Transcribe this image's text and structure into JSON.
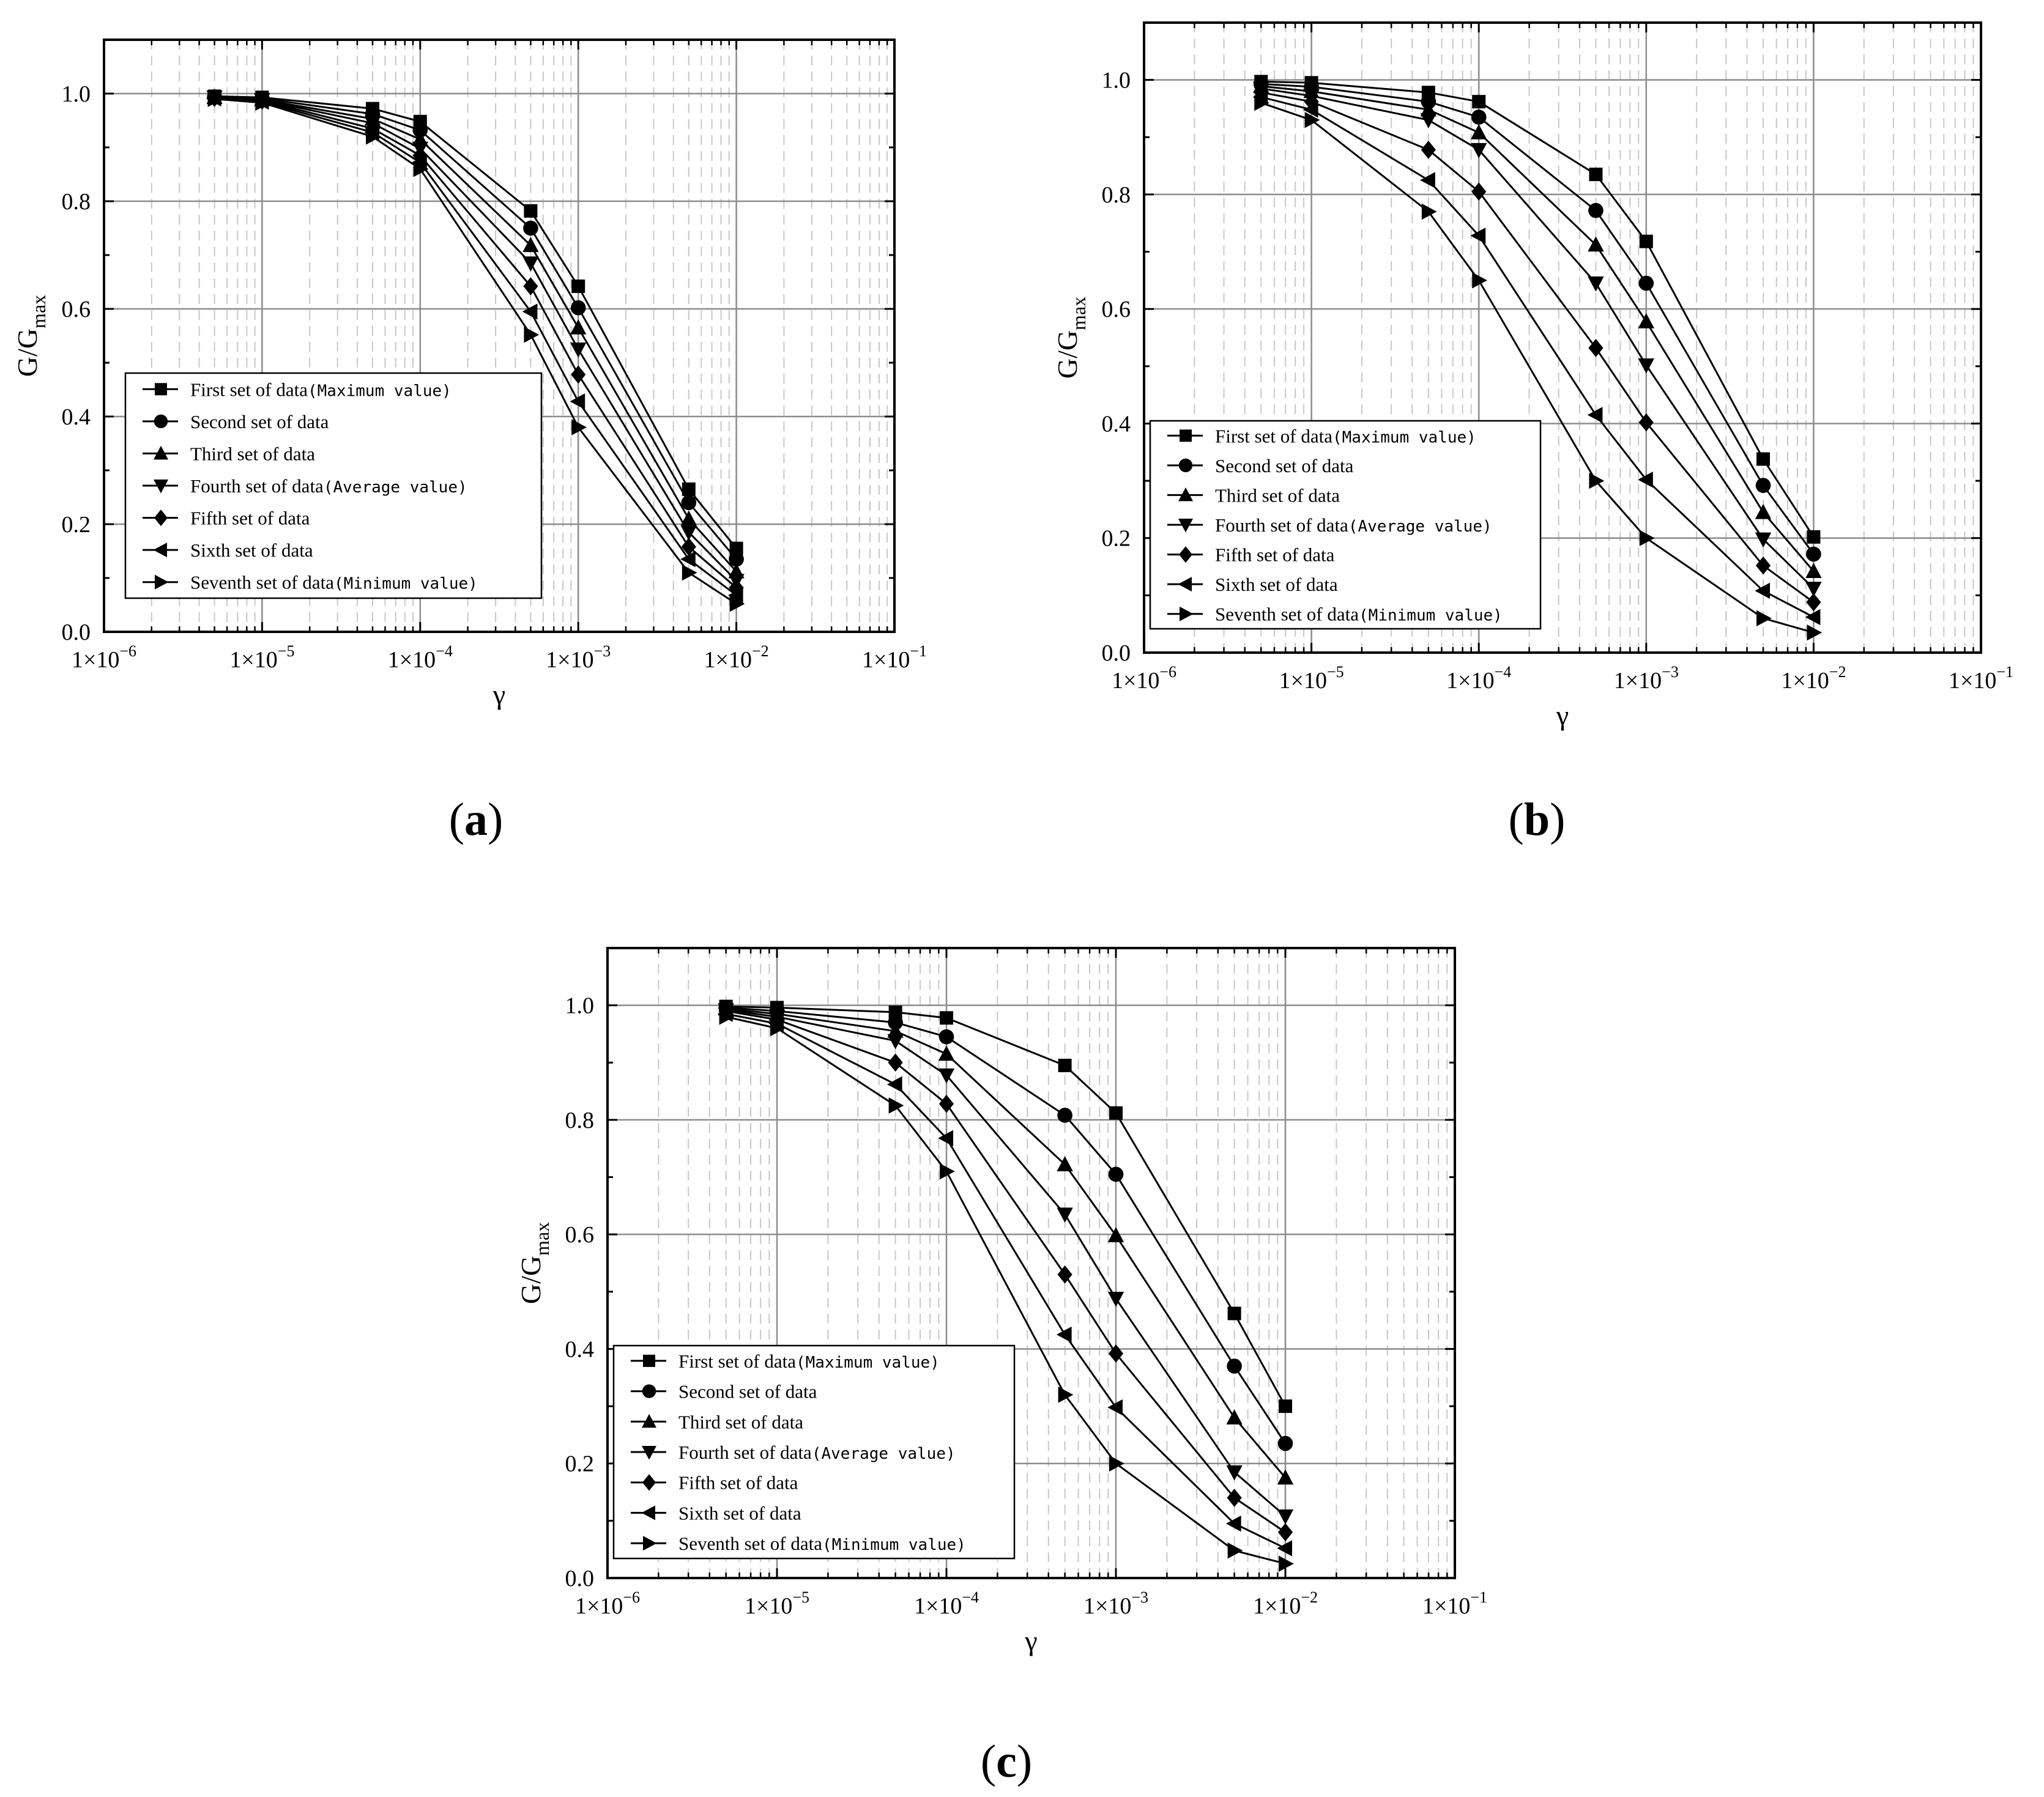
{
  "chart_data": [
    {
      "panel_label": "(a)",
      "type": "line",
      "title": "",
      "xscale": "log",
      "xlim": [
        1e-06,
        0.1
      ],
      "ylim": [
        0.0,
        1.1
      ],
      "xlabel": "γ",
      "ylabel": "G/G",
      "ylabel_sub": "max",
      "grid": true,
      "legend_position": "bottom-left",
      "x": [
        5e-06,
        1e-05,
        5e-05,
        0.0001,
        0.0005,
        0.001,
        0.005,
        0.01
      ],
      "series": [
        {
          "name": "First set of data",
          "note": "Maximum value",
          "marker": "square",
          "values": [
            0.995,
            0.993,
            0.972,
            0.948,
            0.782,
            0.642,
            0.265,
            0.155
          ]
        },
        {
          "name": "Second set of data",
          "note": "",
          "marker": "circle",
          "values": [
            0.994,
            0.991,
            0.962,
            0.932,
            0.75,
            0.602,
            0.24,
            0.135
          ]
        },
        {
          "name": "Third set of data",
          "note": "",
          "marker": "triangle-up",
          "values": [
            0.993,
            0.989,
            0.953,
            0.915,
            0.718,
            0.565,
            0.21,
            0.112
          ]
        },
        {
          "name": "Fourth set of data",
          "note": "Average value",
          "marker": "triangle-down",
          "values": [
            0.993,
            0.988,
            0.945,
            0.898,
            0.685,
            0.525,
            0.185,
            0.095
          ]
        },
        {
          "name": "Fifth set of data",
          "note": "",
          "marker": "diamond",
          "values": [
            0.992,
            0.987,
            0.935,
            0.885,
            0.642,
            0.478,
            0.158,
            0.082
          ]
        },
        {
          "name": "Sixth set of data",
          "note": "",
          "marker": "triangle-left",
          "values": [
            0.991,
            0.985,
            0.928,
            0.872,
            0.595,
            0.428,
            0.135,
            0.068
          ]
        },
        {
          "name": "Seventh set of data",
          "note": "Minimum value",
          "marker": "triangle-right",
          "values": [
            0.99,
            0.983,
            0.92,
            0.86,
            0.552,
            0.38,
            0.11,
            0.052
          ]
        }
      ]
    },
    {
      "panel_label": "(b)",
      "type": "line",
      "title": "",
      "xscale": "log",
      "xlim": [
        1e-06,
        0.1
      ],
      "ylim": [
        0.0,
        1.1
      ],
      "xlabel": "γ",
      "ylabel": "G/G",
      "ylabel_sub": "max",
      "grid": true,
      "legend_position": "bottom-left",
      "x": [
        5e-06,
        1e-05,
        5e-05,
        0.0001,
        0.0005,
        0.001,
        0.005,
        0.01
      ],
      "series": [
        {
          "name": "First set of data",
          "note": "Maximum value",
          "marker": "square",
          "values": [
            0.997,
            0.995,
            0.978,
            0.962,
            0.835,
            0.718,
            0.338,
            0.202
          ]
        },
        {
          "name": "Second set of data",
          "note": "",
          "marker": "circle",
          "values": [
            0.993,
            0.988,
            0.962,
            0.935,
            0.772,
            0.645,
            0.292,
            0.172
          ]
        },
        {
          "name": "Third set of data",
          "note": "",
          "marker": "triangle-up",
          "values": [
            0.989,
            0.98,
            0.948,
            0.908,
            0.712,
            0.578,
            0.245,
            0.142
          ]
        },
        {
          "name": "Fourth set of data",
          "note": "Average value",
          "marker": "triangle-down",
          "values": [
            0.985,
            0.972,
            0.93,
            0.878,
            0.645,
            0.502,
            0.198,
            0.112
          ]
        },
        {
          "name": "Fifth set of data",
          "note": "",
          "marker": "diamond",
          "values": [
            0.978,
            0.962,
            0.878,
            0.805,
            0.532,
            0.402,
            0.152,
            0.088
          ]
        },
        {
          "name": "Sixth set of data",
          "note": "",
          "marker": "triangle-left",
          "values": [
            0.97,
            0.948,
            0.825,
            0.728,
            0.415,
            0.302,
            0.108,
            0.062
          ]
        },
        {
          "name": "Seventh set of data",
          "note": "Minimum value",
          "marker": "triangle-right",
          "values": [
            0.96,
            0.93,
            0.77,
            0.65,
            0.3,
            0.2,
            0.06,
            0.035
          ]
        }
      ]
    },
    {
      "panel_label": "(c)",
      "type": "line",
      "title": "",
      "xscale": "log",
      "xlim": [
        1e-06,
        0.1
      ],
      "ylim": [
        0.0,
        1.1
      ],
      "xlabel": "γ",
      "ylabel": "G/G",
      "ylabel_sub": "max",
      "grid": true,
      "legend_position": "bottom-left",
      "x": [
        5e-06,
        1e-05,
        5e-05,
        0.0001,
        0.0005,
        0.001,
        0.005,
        0.01
      ],
      "series": [
        {
          "name": "First set of data",
          "note": "Maximum value",
          "marker": "square",
          "values": [
            0.998,
            0.996,
            0.988,
            0.978,
            0.895,
            0.812,
            0.462,
            0.3
          ]
        },
        {
          "name": "Second set of data",
          "note": "",
          "marker": "circle",
          "values": [
            0.996,
            0.99,
            0.97,
            0.945,
            0.808,
            0.705,
            0.37,
            0.235
          ]
        },
        {
          "name": "Third set of data",
          "note": "",
          "marker": "triangle-up",
          "values": [
            0.994,
            0.985,
            0.955,
            0.915,
            0.722,
            0.598,
            0.28,
            0.175
          ]
        },
        {
          "name": "Fourth set of data",
          "note": "Average value",
          "marker": "triangle-down",
          "values": [
            0.992,
            0.98,
            0.938,
            0.878,
            0.635,
            0.488,
            0.185,
            0.108
          ]
        },
        {
          "name": "Fifth set of data",
          "note": "",
          "marker": "diamond",
          "values": [
            0.99,
            0.975,
            0.9,
            0.828,
            0.53,
            0.392,
            0.14,
            0.08
          ]
        },
        {
          "name": "Sixth set of data",
          "note": "",
          "marker": "triangle-left",
          "values": [
            0.985,
            0.968,
            0.862,
            0.768,
            0.425,
            0.298,
            0.095,
            0.052
          ]
        },
        {
          "name": "Seventh set of data",
          "note": "Minimum value",
          "marker": "triangle-right",
          "values": [
            0.98,
            0.96,
            0.825,
            0.71,
            0.32,
            0.2,
            0.048,
            0.025
          ]
        }
      ]
    }
  ],
  "axis_ticks": {
    "x": [
      {
        "base": "1×10",
        "exp": "−6"
      },
      {
        "base": "1×10",
        "exp": "−5"
      },
      {
        "base": "1×10",
        "exp": "−4"
      },
      {
        "base": "1×10",
        "exp": "−3"
      },
      {
        "base": "1×10",
        "exp": "−2"
      },
      {
        "base": "1×10",
        "exp": "−1"
      }
    ],
    "y": [
      "0.0",
      "0.2",
      "0.4",
      "0.6",
      "0.8",
      "1.0"
    ]
  },
  "colors": {
    "line": "#000000",
    "major_grid": "#8c8c8c",
    "minor_grid": "#c8c8c8",
    "frame": "#000000"
  }
}
